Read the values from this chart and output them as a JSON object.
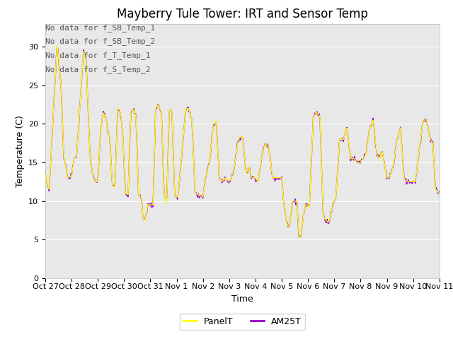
{
  "title": "Mayberry Tule Tower: IRT and Sensor Temp",
  "xlabel": "Time",
  "ylabel": "Temperature (C)",
  "ylim": [
    0,
    33
  ],
  "yticks": [
    0,
    5,
    10,
    15,
    20,
    25,
    30
  ],
  "x_tick_labels": [
    "Oct 27",
    "Oct 28",
    "Oct 29",
    "Oct 30",
    "Oct 31",
    "Nov 1",
    "Nov 2",
    "Nov 3",
    "Nov 4",
    "Nov 5",
    "Nov 6",
    "Nov 7",
    "Nov 8",
    "Nov 9",
    "Nov 10",
    "Nov 11"
  ],
  "panel_color": "#ffff00",
  "am25t_color": "#9900cc",
  "plot_bg_color": "#e8e8e8",
  "fig_bg_color": "#ffffff",
  "legend_entries": [
    "PanelT",
    "AM25T"
  ],
  "no_data_text": [
    "No data for f_SB_Temp_1",
    "No data for f_SB_Temp_2",
    "No data for f_T_Temp_1",
    "No data for f_S_Temp_2"
  ],
  "title_fontsize": 12,
  "axis_fontsize": 9,
  "tick_fontsize": 8,
  "no_data_fontsize": 8,
  "key_points_panel": [
    [
      0.0,
      13.5
    ],
    [
      0.08,
      12.0
    ],
    [
      0.15,
      11.5
    ],
    [
      0.45,
      30.5
    ],
    [
      0.6,
      25.0
    ],
    [
      0.7,
      16.0
    ],
    [
      0.85,
      13.0
    ],
    [
      1.0,
      13.3
    ],
    [
      1.1,
      15.5
    ],
    [
      1.2,
      16.0
    ],
    [
      1.45,
      29.5
    ],
    [
      1.55,
      28.5
    ],
    [
      1.7,
      16.0
    ],
    [
      1.82,
      13.0
    ],
    [
      1.9,
      12.5
    ],
    [
      2.0,
      12.5
    ],
    [
      2.1,
      19.0
    ],
    [
      2.2,
      21.5
    ],
    [
      2.3,
      20.8
    ],
    [
      2.38,
      19.0
    ],
    [
      2.45,
      18.5
    ],
    [
      2.55,
      12.0
    ],
    [
      2.65,
      11.8
    ],
    [
      2.75,
      21.8
    ],
    [
      2.82,
      22.0
    ],
    [
      2.88,
      21.0
    ],
    [
      2.95,
      18.5
    ],
    [
      3.05,
      11.0
    ],
    [
      3.15,
      10.8
    ],
    [
      3.25,
      21.0
    ],
    [
      3.35,
      22.0
    ],
    [
      3.45,
      21.0
    ],
    [
      3.55,
      10.8
    ],
    [
      3.65,
      10.5
    ],
    [
      3.72,
      7.8
    ],
    [
      3.8,
      7.5
    ],
    [
      3.9,
      9.5
    ],
    [
      4.0,
      9.5
    ],
    [
      4.1,
      9.5
    ],
    [
      4.2,
      22.0
    ],
    [
      4.3,
      22.5
    ],
    [
      4.42,
      21.5
    ],
    [
      4.52,
      11.0
    ],
    [
      4.62,
      9.6
    ],
    [
      4.72,
      22.0
    ],
    [
      4.82,
      21.5
    ],
    [
      4.92,
      10.8
    ],
    [
      5.0,
      10.5
    ],
    [
      5.05,
      10.5
    ],
    [
      5.35,
      22.0
    ],
    [
      5.45,
      22.0
    ],
    [
      5.58,
      20.5
    ],
    [
      5.7,
      11.0
    ],
    [
      5.82,
      10.8
    ],
    [
      6.0,
      10.5
    ],
    [
      6.1,
      13.0
    ],
    [
      6.25,
      15.0
    ],
    [
      6.38,
      19.5
    ],
    [
      6.5,
      20.5
    ],
    [
      6.62,
      13.0
    ],
    [
      6.72,
      12.5
    ],
    [
      6.85,
      13.0
    ],
    [
      7.0,
      12.5
    ],
    [
      7.08,
      13.0
    ],
    [
      7.2,
      14.5
    ],
    [
      7.35,
      18.0
    ],
    [
      7.5,
      18.5
    ],
    [
      7.65,
      13.5
    ],
    [
      7.75,
      14.5
    ],
    [
      7.85,
      13.0
    ],
    [
      8.0,
      13.0
    ],
    [
      8.1,
      12.5
    ],
    [
      8.25,
      16.0
    ],
    [
      8.38,
      17.5
    ],
    [
      8.5,
      17.0
    ],
    [
      8.65,
      13.0
    ],
    [
      8.75,
      13.0
    ],
    [
      8.85,
      13.0
    ],
    [
      9.0,
      13.0
    ],
    [
      9.08,
      9.5
    ],
    [
      9.15,
      8.0
    ],
    [
      9.22,
      6.8
    ],
    [
      9.3,
      6.7
    ],
    [
      9.4,
      10.0
    ],
    [
      9.5,
      10.0
    ],
    [
      9.58,
      9.8
    ],
    [
      9.65,
      5.5
    ],
    [
      9.72,
      5.2
    ],
    [
      9.82,
      8.0
    ],
    [
      9.9,
      9.5
    ],
    [
      10.0,
      9.5
    ],
    [
      10.05,
      9.0
    ],
    [
      10.2,
      21.0
    ],
    [
      10.32,
      21.5
    ],
    [
      10.45,
      21.0
    ],
    [
      10.58,
      8.0
    ],
    [
      10.68,
      7.5
    ],
    [
      10.78,
      7.2
    ],
    [
      11.0,
      10.0
    ],
    [
      11.05,
      10.0
    ],
    [
      11.2,
      18.0
    ],
    [
      11.35,
      18.0
    ],
    [
      11.48,
      19.5
    ],
    [
      11.62,
      15.5
    ],
    [
      11.75,
      15.5
    ],
    [
      11.85,
      15.0
    ],
    [
      12.0,
      15.0
    ],
    [
      12.08,
      15.5
    ],
    [
      12.2,
      16.0
    ],
    [
      12.35,
      19.5
    ],
    [
      12.48,
      20.5
    ],
    [
      12.62,
      16.0
    ],
    [
      12.72,
      15.5
    ],
    [
      12.82,
      16.5
    ],
    [
      13.0,
      13.0
    ],
    [
      13.08,
      13.0
    ],
    [
      13.25,
      14.5
    ],
    [
      13.38,
      18.0
    ],
    [
      13.52,
      19.5
    ],
    [
      13.65,
      13.0
    ],
    [
      13.75,
      12.5
    ],
    [
      13.85,
      12.5
    ],
    [
      14.0,
      12.5
    ],
    [
      14.08,
      12.5
    ],
    [
      14.25,
      17.0
    ],
    [
      14.38,
      20.5
    ],
    [
      14.52,
      20.5
    ],
    [
      14.65,
      18.0
    ],
    [
      14.75,
      17.5
    ],
    [
      14.85,
      11.5
    ],
    [
      15.0,
      11.0
    ]
  ]
}
